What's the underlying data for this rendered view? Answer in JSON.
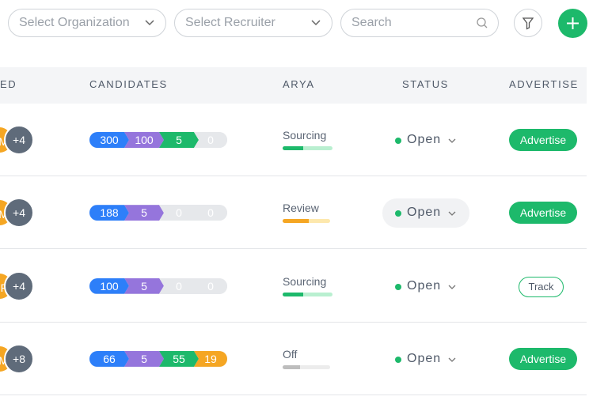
{
  "filters": {
    "organization": "Select Organization",
    "recruiter": "Select Recruiter",
    "search": "Search"
  },
  "table": {
    "headers": [
      "ED",
      "CANDIDATES",
      "ARYA",
      "STATUS",
      "ADVERTISE"
    ],
    "rows": [
      {
        "avatar": "M",
        "more": "+4",
        "pipeline": [
          300,
          100,
          5,
          0
        ],
        "arya": "Sourcing",
        "status": "Open",
        "action": "Advertise"
      },
      {
        "avatar": "M",
        "more": "+4",
        "pipeline": [
          188,
          5,
          0,
          0
        ],
        "arya": "Review",
        "status": "Open",
        "action": "Advertise"
      },
      {
        "avatar": "P",
        "more": "+4",
        "pipeline": [
          100,
          5,
          0,
          0
        ],
        "arya": "Sourcing",
        "status": "Open",
        "action": "Track"
      },
      {
        "avatar": "M",
        "more": "+8",
        "pipeline": [
          66,
          5,
          55,
          19
        ],
        "arya": "Off",
        "status": "Open",
        "action": "Advertise"
      }
    ]
  }
}
